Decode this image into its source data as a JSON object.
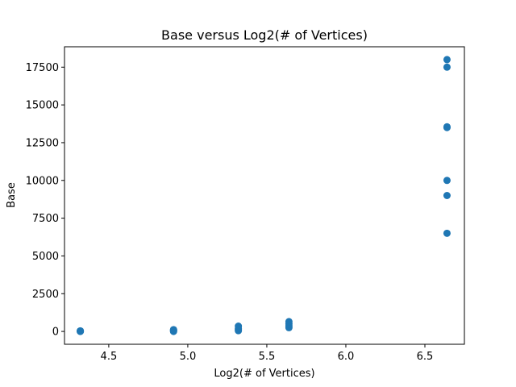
{
  "chart_data": {
    "type": "scatter",
    "title": "Base versus Log2(# of Vertices)",
    "xlabel": "Log2(# of Vertices)",
    "ylabel": "Base",
    "xlim": [
      4.22,
      6.75
    ],
    "ylim": [
      -850,
      18850
    ],
    "xticks": [
      4.5,
      5.0,
      5.5,
      6.0,
      6.5
    ],
    "xtick_labels": [
      "4.5",
      "5.0",
      "5.5",
      "6.0",
      "6.5"
    ],
    "yticks": [
      0,
      2500,
      5000,
      7500,
      10000,
      12500,
      15000,
      17500
    ],
    "ytick_labels": [
      "0",
      "2500",
      "5000",
      "7500",
      "10000",
      "12500",
      "15000",
      "17500"
    ],
    "grid": false,
    "marker_color": "#1f77b4",
    "series": [
      {
        "points": [
          {
            "x": 4.32,
            "y": 0
          },
          {
            "x": 4.32,
            "y": 10
          },
          {
            "x": 4.32,
            "y": 25
          },
          {
            "x": 4.32,
            "y": 40
          },
          {
            "x": 4.91,
            "y": 0
          },
          {
            "x": 4.91,
            "y": 40
          },
          {
            "x": 4.91,
            "y": 80
          },
          {
            "x": 4.91,
            "y": 120
          },
          {
            "x": 5.32,
            "y": 50
          },
          {
            "x": 5.32,
            "y": 120
          },
          {
            "x": 5.32,
            "y": 200
          },
          {
            "x": 5.32,
            "y": 350
          },
          {
            "x": 5.64,
            "y": 250
          },
          {
            "x": 5.64,
            "y": 350
          },
          {
            "x": 5.64,
            "y": 500
          },
          {
            "x": 5.64,
            "y": 650
          },
          {
            "x": 6.64,
            "y": 6500
          },
          {
            "x": 6.64,
            "y": 9000
          },
          {
            "x": 6.64,
            "y": 10000
          },
          {
            "x": 6.64,
            "y": 13500
          },
          {
            "x": 6.64,
            "y": 13550
          },
          {
            "x": 6.64,
            "y": 17500
          },
          {
            "x": 6.64,
            "y": 18000
          }
        ]
      }
    ]
  }
}
